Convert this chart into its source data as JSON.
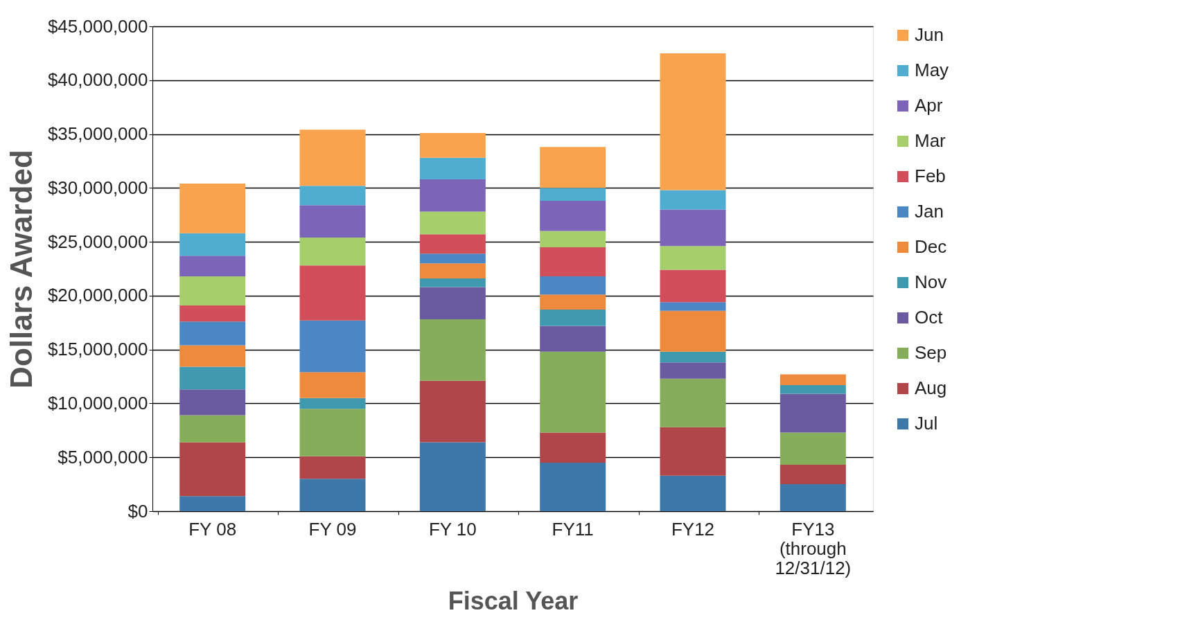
{
  "chart_data": {
    "type": "bar",
    "stacked": true,
    "xlabel": "Fiscal Year",
    "ylabel": "Dollars Awarded",
    "categories": [
      "FY 08",
      "FY 09",
      "FY 10",
      "FY11",
      "FY12",
      "FY13\n(through\n12/31/12)"
    ],
    "series": [
      {
        "name": "Jul",
        "color": "#3d78a8",
        "values": [
          1400000,
          3000000,
          6400000,
          4500000,
          3300000,
          2500000
        ]
      },
      {
        "name": "Aug",
        "color": "#b0464a",
        "values": [
          5000000,
          2100000,
          5700000,
          2800000,
          4500000,
          1800000
        ]
      },
      {
        "name": "Sep",
        "color": "#86ad5a",
        "values": [
          2500000,
          4400000,
          5700000,
          7500000,
          4500000,
          3000000
        ]
      },
      {
        "name": "Oct",
        "color": "#6a5aa0",
        "values": [
          2400000,
          null,
          3000000,
          2400000,
          1500000,
          3600000
        ]
      },
      {
        "name": "Nov",
        "color": "#3f9ab0",
        "values": [
          2100000,
          1000000,
          800000,
          1500000,
          1000000,
          800000
        ]
      },
      {
        "name": "Dec",
        "color": "#ee8a3c",
        "values": [
          2000000,
          2400000,
          1400000,
          1400000,
          3800000,
          1000000
        ]
      },
      {
        "name": "Jan",
        "color": "#4a87c4",
        "values": [
          2200000,
          4800000,
          900000,
          1700000,
          800000,
          null
        ]
      },
      {
        "name": "Feb",
        "color": "#d24e5a",
        "values": [
          1500000,
          5100000,
          1800000,
          2700000,
          3000000,
          null
        ]
      },
      {
        "name": "Mar",
        "color": "#a6cf6c",
        "values": [
          2700000,
          2600000,
          2100000,
          1500000,
          2200000,
          null
        ]
      },
      {
        "name": "Apr",
        "color": "#7c64b8",
        "values": [
          1900000,
          3000000,
          3000000,
          2800000,
          3400000,
          null
        ]
      },
      {
        "name": "May",
        "color": "#4fadd0",
        "values": [
          2100000,
          1800000,
          2000000,
          1200000,
          1800000,
          null
        ]
      },
      {
        "name": "Jun",
        "color": "#f9a34e",
        "values": [
          4600000,
          5200000,
          2300000,
          3800000,
          12700000,
          null
        ]
      }
    ],
    "ylim": [
      0,
      45000000
    ],
    "yticks": [
      {
        "value": 0,
        "label": "$0"
      },
      {
        "value": 5000000,
        "label": "$5,000,000"
      },
      {
        "value": 10000000,
        "label": "$10,000,000"
      },
      {
        "value": 15000000,
        "label": "$15,000,000"
      },
      {
        "value": 20000000,
        "label": "$20,000,000"
      },
      {
        "value": 25000000,
        "label": "$25,000,000"
      },
      {
        "value": 30000000,
        "label": "$30,000,000"
      },
      {
        "value": 35000000,
        "label": "$35,000,000"
      },
      {
        "value": 40000000,
        "label": "$40,000,000"
      },
      {
        "value": 45000000,
        "label": "$45,000,000"
      }
    ],
    "grid": "y",
    "legend": "right"
  }
}
